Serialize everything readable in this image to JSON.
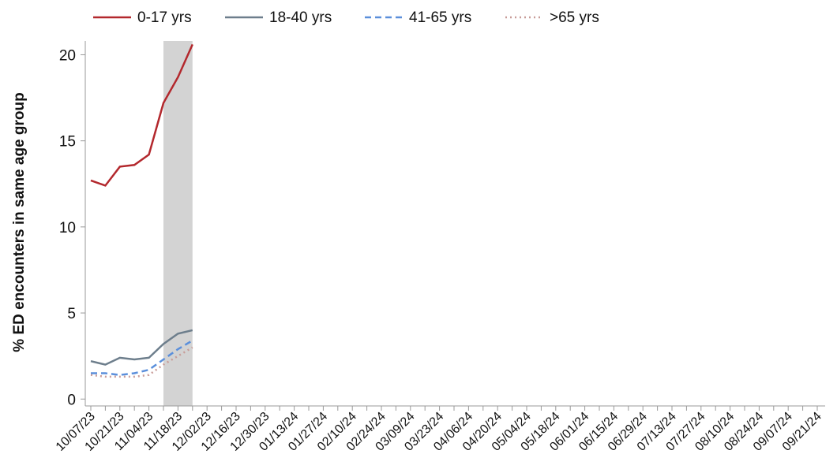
{
  "chart_data": {
    "type": "line",
    "y_label": "% ED encounters in same age group",
    "categories": [
      "10/07/23",
      null,
      "10/21/23",
      null,
      "11/04/23",
      null,
      "11/18/23",
      null,
      "12/02/23",
      null,
      "12/16/23",
      null,
      "12/30/23",
      null,
      "01/13/24",
      null,
      "01/27/24",
      null,
      "02/10/24",
      null,
      "02/24/24",
      null,
      "03/09/24",
      null,
      "03/23/24",
      null,
      "04/06/24",
      null,
      "04/20/24",
      null,
      "05/04/24",
      null,
      "05/18/24",
      null,
      "06/01/24",
      null,
      "06/15/24",
      null,
      "06/29/24",
      null,
      "07/13/24",
      null,
      "07/27/24",
      null,
      "08/10/24",
      null,
      "08/24/24",
      null,
      "09/07/24",
      null,
      "09/21/24"
    ],
    "series": [
      {
        "name": "0-17 yrs",
        "color": "#b3282d",
        "dash": "solid",
        "values": [
          12.7,
          12.4,
          13.5,
          13.6,
          14.2,
          17.2,
          18.7,
          20.6,
          null,
          null,
          null,
          null,
          null,
          null,
          null,
          null,
          null,
          null,
          null,
          null,
          null,
          null,
          null,
          null,
          null,
          null,
          null,
          null,
          null,
          null,
          null,
          null,
          null,
          null,
          null,
          null,
          null,
          null,
          null,
          null,
          null,
          null,
          null,
          null,
          null,
          null,
          null,
          null,
          null,
          null,
          null
        ]
      },
      {
        "name": "18-40 yrs",
        "color": "#6d7e8c",
        "dash": "solid",
        "values": [
          2.2,
          2.0,
          2.4,
          2.3,
          2.4,
          3.2,
          3.8,
          4.0,
          null,
          null,
          null,
          null,
          null,
          null,
          null,
          null,
          null,
          null,
          null,
          null,
          null,
          null,
          null,
          null,
          null,
          null,
          null,
          null,
          null,
          null,
          null,
          null,
          null,
          null,
          null,
          null,
          null,
          null,
          null,
          null,
          null,
          null,
          null,
          null,
          null,
          null,
          null,
          null,
          null,
          null,
          null
        ]
      },
      {
        "name": "41-65 yrs",
        "color": "#5b8fdb",
        "dash": "dashed",
        "values": [
          1.5,
          1.5,
          1.4,
          1.5,
          1.7,
          2.3,
          2.9,
          3.4,
          null,
          null,
          null,
          null,
          null,
          null,
          null,
          null,
          null,
          null,
          null,
          null,
          null,
          null,
          null,
          null,
          null,
          null,
          null,
          null,
          null,
          null,
          null,
          null,
          null,
          null,
          null,
          null,
          null,
          null,
          null,
          null,
          null,
          null,
          null,
          null,
          null,
          null,
          null,
          null,
          null,
          null,
          null
        ]
      },
      {
        "name": ">65 yrs",
        "color": "#c89c98",
        "dash": "dotted",
        "values": [
          1.4,
          1.3,
          1.3,
          1.3,
          1.4,
          2.0,
          2.5,
          3.0,
          null,
          null,
          null,
          null,
          null,
          null,
          null,
          null,
          null,
          null,
          null,
          null,
          null,
          null,
          null,
          null,
          null,
          null,
          null,
          null,
          null,
          null,
          null,
          null,
          null,
          null,
          null,
          null,
          null,
          null,
          null,
          null,
          null,
          null,
          null,
          null,
          null,
          null,
          null,
          null,
          null,
          null,
          null
        ]
      }
    ],
    "shaded_range": [
      5,
      7
    ],
    "shaded_color": "#d3d3d3",
    "ylim": [
      -0.4,
      20.8
    ],
    "yticks": [
      0,
      5,
      10,
      15,
      20
    ],
    "legend": "top"
  }
}
